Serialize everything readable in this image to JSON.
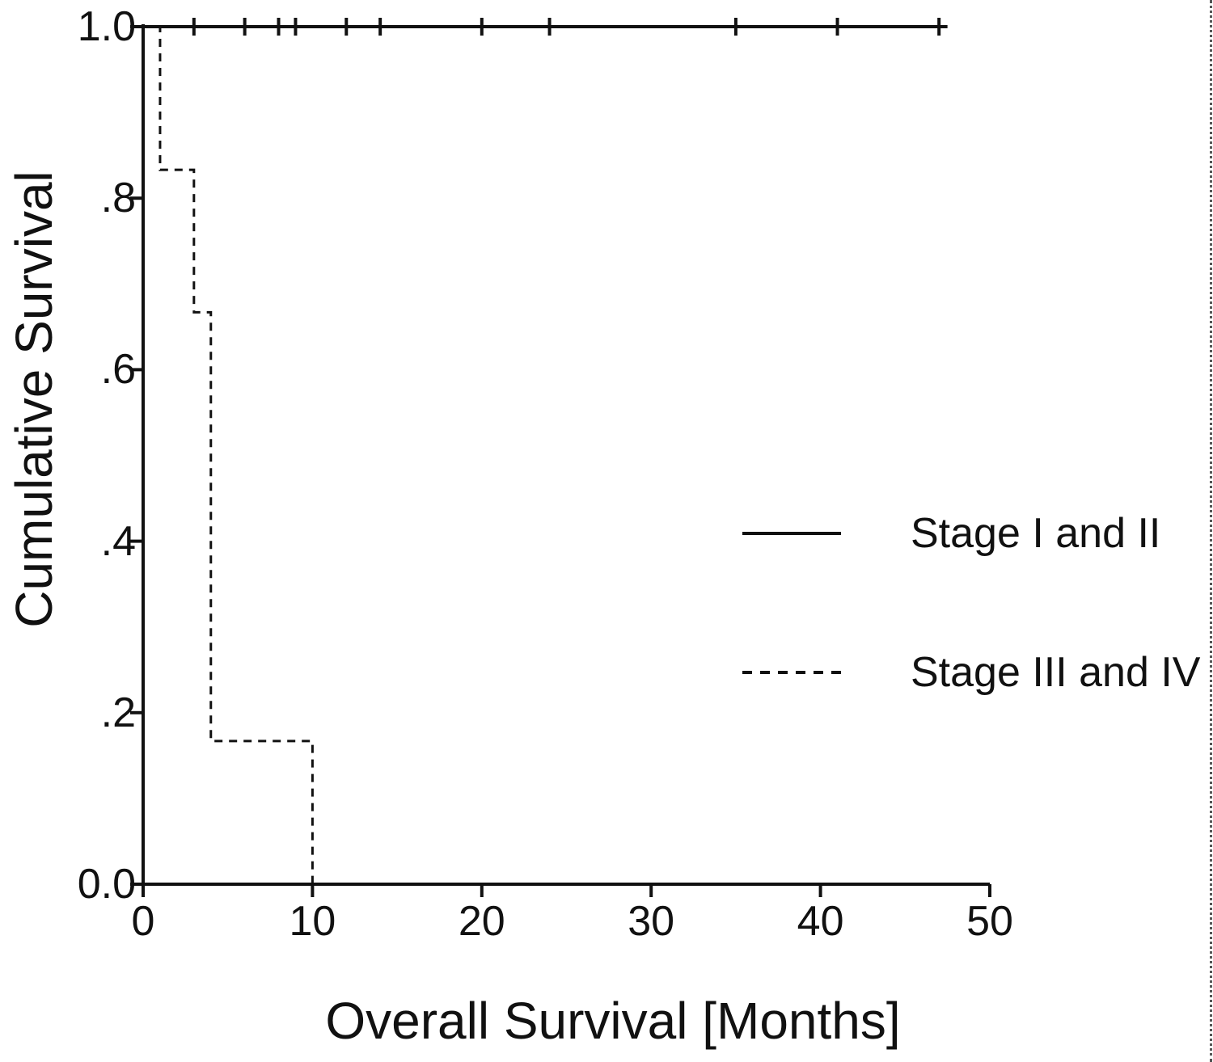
{
  "chart_data": {
    "type": "line",
    "subtype": "kaplan-meier-step",
    "title": "",
    "xlabel": "Overall Survival [Months]",
    "ylabel": "Cumulative Survival",
    "xlim": [
      0,
      50
    ],
    "ylim": [
      0,
      1.0
    ],
    "x_tick_values": [
      0,
      10,
      20,
      30,
      40,
      50
    ],
    "x_tick_labels": [
      "0",
      "10",
      "20",
      "30",
      "40",
      "50"
    ],
    "y_tick_values": [
      0.0,
      0.2,
      0.4,
      0.6,
      0.8,
      1.0
    ],
    "y_tick_labels": [
      "0.0",
      ".2",
      ".4",
      ".6",
      ".8",
      "1.0"
    ],
    "grid": false,
    "legend_position": "center-right",
    "series": [
      {
        "name": "Stage I and II",
        "line_style": "solid",
        "steps": [
          [
            0,
            1.0
          ],
          [
            47.5,
            1.0
          ]
        ],
        "censor_times": [
          3,
          6,
          8,
          9,
          12,
          14,
          20,
          24,
          35,
          41,
          47
        ],
        "censor_value": 1.0
      },
      {
        "name": "Stage III and IV",
        "line_style": "dashed",
        "steps": [
          [
            0,
            1.0
          ],
          [
            1,
            1.0
          ],
          [
            1,
            0.833
          ],
          [
            3,
            0.833
          ],
          [
            3,
            0.667
          ],
          [
            4,
            0.667
          ],
          [
            4,
            0.167
          ],
          [
            10,
            0.167
          ],
          [
            10,
            0.0
          ]
        ],
        "censor_times": [],
        "censor_value": null
      }
    ]
  },
  "legend": {
    "items": [
      {
        "label": "Stage I and II",
        "line_style": "solid"
      },
      {
        "label": "Stage III and IV",
        "line_style": "dashed"
      }
    ]
  },
  "colors": {
    "line": "#111111",
    "text": "#111111",
    "background": "#ffffff",
    "edge_artifact": "#555555"
  }
}
